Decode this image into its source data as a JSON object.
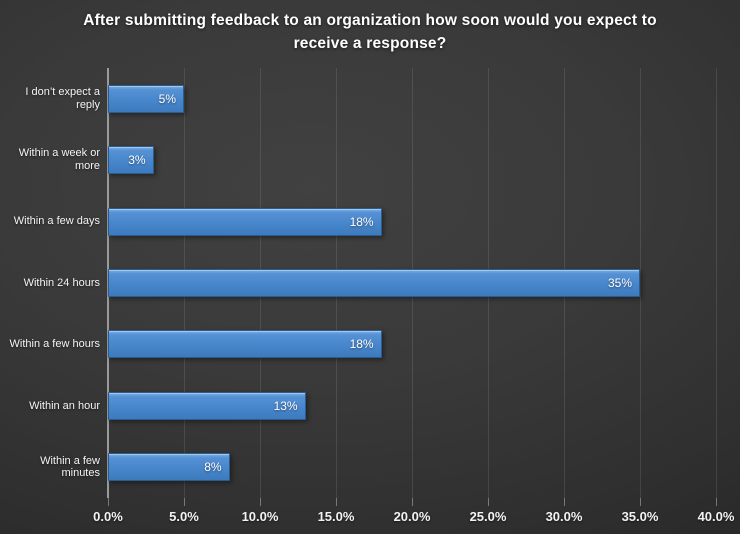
{
  "chart_data": {
    "type": "bar",
    "orientation": "horizontal",
    "title": "After submitting feedback to an organization how soon would you expect to receive a response?",
    "categories": [
      "I don’t expect a reply",
      "Within a week or more",
      "Within a few days",
      "Within 24 hours",
      "Within a few hours",
      "Within an hour",
      "Within a few minutes"
    ],
    "values": [
      5,
      3,
      18,
      35,
      18,
      13,
      8
    ],
    "value_labels": [
      "5%",
      "3%",
      "18%",
      "35%",
      "18%",
      "13%",
      "8%"
    ],
    "xlabel": "",
    "ylabel": "",
    "xlim": [
      0,
      40
    ],
    "x_tick_values": [
      0,
      5,
      10,
      15,
      20,
      25,
      30,
      35,
      40
    ],
    "x_tick_labels": [
      "0.0%",
      "5.0%",
      "10.0%",
      "15.0%",
      "20.0%",
      "25.0%",
      "30.0%",
      "35.0%",
      "40.0%"
    ],
    "grid": "vertical major gridlines on",
    "legend": "none",
    "colors": {
      "bar_fill": "#4886CC",
      "bar_fill_highlight": "#7FB2E6",
      "bar_border": "#2B5C8F",
      "background_center": "#3F3F3F",
      "background_edge": "#232323",
      "text": "#FFFFFF",
      "gridline": "#4A4A4A",
      "axis_line": "#9A9A9A"
    }
  }
}
